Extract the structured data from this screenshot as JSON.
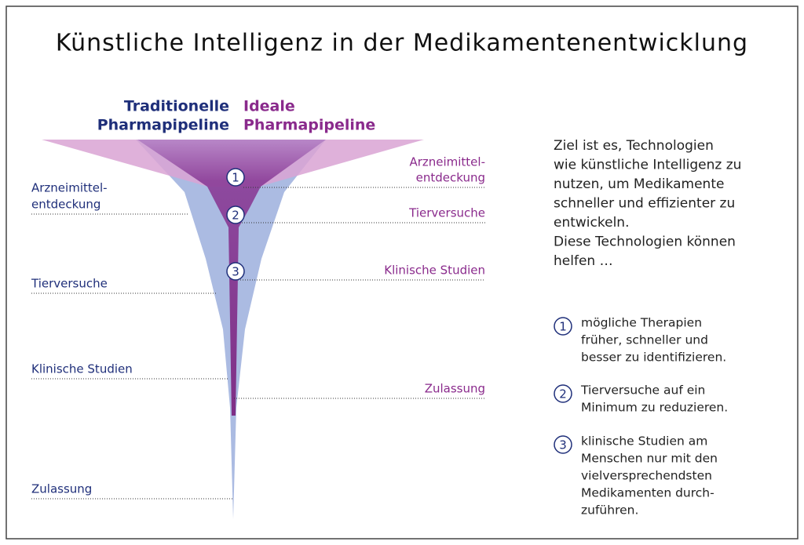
{
  "title": "Künstliche Intelligenz in der Medikamentenentwicklung",
  "pipelines": {
    "traditional": {
      "label": [
        "Traditionelle",
        "Pharmapipeline"
      ],
      "stages": [
        [
          "Arzneimittel-",
          "entdeckung"
        ],
        [
          "Tierversuche"
        ],
        [
          "Klinische Studien"
        ],
        [
          "Zulassung"
        ]
      ]
    },
    "ideal": {
      "label": [
        "Ideale",
        "Pharmapipeline"
      ],
      "stages": [
        [
          "Arzneimittel-",
          "entdeckung"
        ],
        [
          "Tierversuche"
        ],
        [
          "Klinische Studien"
        ],
        [
          "Zulassung"
        ]
      ]
    }
  },
  "description": [
    "Ziel ist es, Technologien",
    "wie künstliche Intelligenz zu",
    "nutzen, um Medikamente",
    "schneller und effizienter zu",
    "entwickeln.",
    "Diese Technologien können",
    "helfen …"
  ],
  "points": [
    {
      "number": "1",
      "text": [
        "mögliche Therapien",
        "früher, schneller und",
        "besser zu identifizieren."
      ]
    },
    {
      "number": "2",
      "text": [
        "Tierversuche auf ein",
        "Minimum zu reduzieren."
      ]
    },
    {
      "number": "3",
      "text": [
        "klinische Studien am",
        "Menschen nur mit den",
        "vielversprechendsten",
        "Medikamenten durch-",
        "zuführen."
      ]
    }
  ]
}
